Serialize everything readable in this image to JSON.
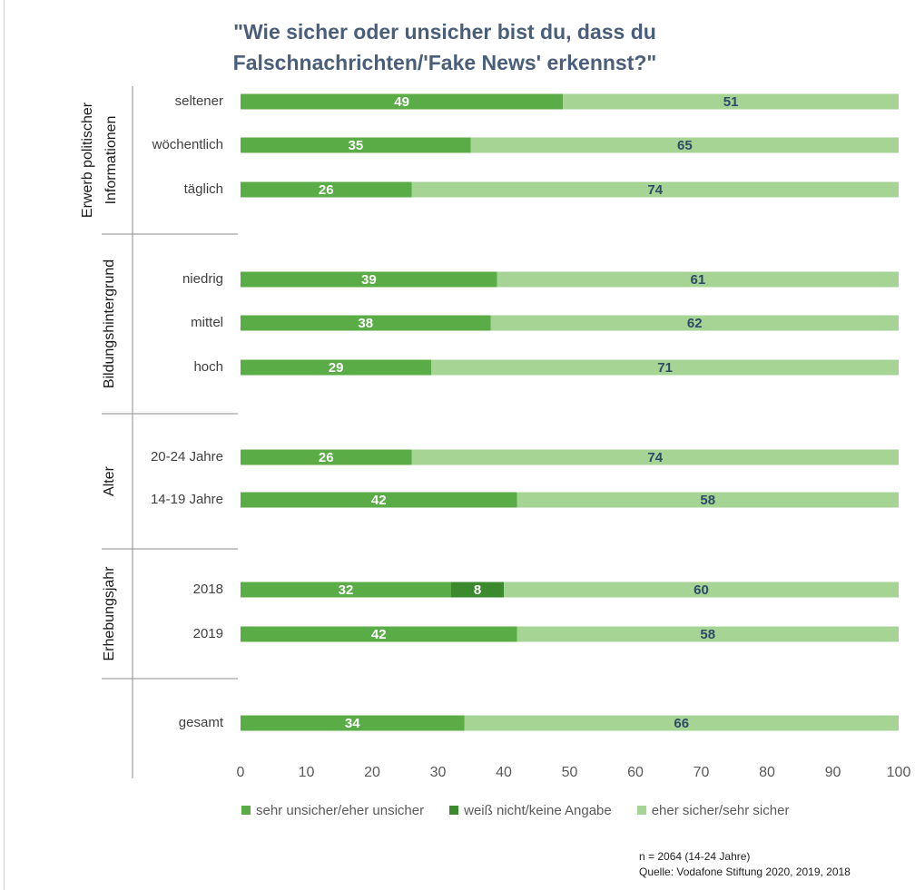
{
  "title_lines": [
    "\"Wie sicher oder unsicher bist du, dass du",
    "Falschnachrichten/'Fake News' erkennst?\""
  ],
  "legend": [
    {
      "label": "sehr unsicher/eher unsicher",
      "color": "#5aad46"
    },
    {
      "label": "weiß nicht/keine Angabe",
      "color": "#3b8a2e"
    },
    {
      "label": "eher sicher/sehr sicher",
      "color": "#a6d494"
    }
  ],
  "notes": {
    "sample": "n = 2064 (14-24 Jahre)",
    "source": "Quelle: Vodafone Stiftung 2020, 2019, 2018"
  },
  "chart_data": {
    "type": "bar",
    "orientation": "horizontal",
    "stacked": true,
    "xlim": [
      0,
      100
    ],
    "x_ticks": [
      "0",
      "10",
      "20",
      "30",
      "40",
      "50",
      "60",
      "70",
      "80",
      "90",
      "100"
    ],
    "series": [
      {
        "name": "sehr unsicher/eher unsicher",
        "color": "#5aad46",
        "label_color": "#ffffff"
      },
      {
        "name": "weiß nicht/keine Angabe",
        "color": "#3b8a2e",
        "label_color": "#ffffff"
      },
      {
        "name": "eher sicher/sehr sicher",
        "color": "#a6d494",
        "label_color": "#2f4a66"
      }
    ],
    "groups": [
      {
        "label_lines": [
          "Erwerb politischer",
          "Informationen"
        ],
        "rows": [
          {
            "label": "seltener",
            "values": [
              49,
              0,
              51
            ]
          },
          {
            "label": "wöchentlich",
            "values": [
              35,
              0,
              65
            ]
          },
          {
            "label": "täglich",
            "values": [
              26,
              0,
              74
            ]
          }
        ]
      },
      {
        "label_lines": [
          "Bildungshintergrund"
        ],
        "rows": [
          {
            "label": "niedrig",
            "values": [
              39,
              0,
              61
            ]
          },
          {
            "label": "mittel",
            "values": [
              38,
              0,
              62
            ]
          },
          {
            "label": "hoch",
            "values": [
              29,
              0,
              71
            ]
          }
        ]
      },
      {
        "label_lines": [
          "Alter"
        ],
        "rows": [
          {
            "label": "20-24 Jahre",
            "values": [
              26,
              0,
              74
            ]
          },
          {
            "label": "14-19 Jahre",
            "values": [
              42,
              0,
              58
            ]
          }
        ]
      },
      {
        "label_lines": [
          "Erhebungsjahr"
        ],
        "rows": [
          {
            "label": "2018",
            "values": [
              32,
              8,
              60
            ]
          },
          {
            "label": "2019",
            "values": [
              42,
              0,
              58
            ]
          }
        ]
      },
      {
        "label_lines": [],
        "rows": [
          {
            "label": "gesamt",
            "values": [
              34,
              0,
              66
            ]
          }
        ]
      }
    ]
  }
}
